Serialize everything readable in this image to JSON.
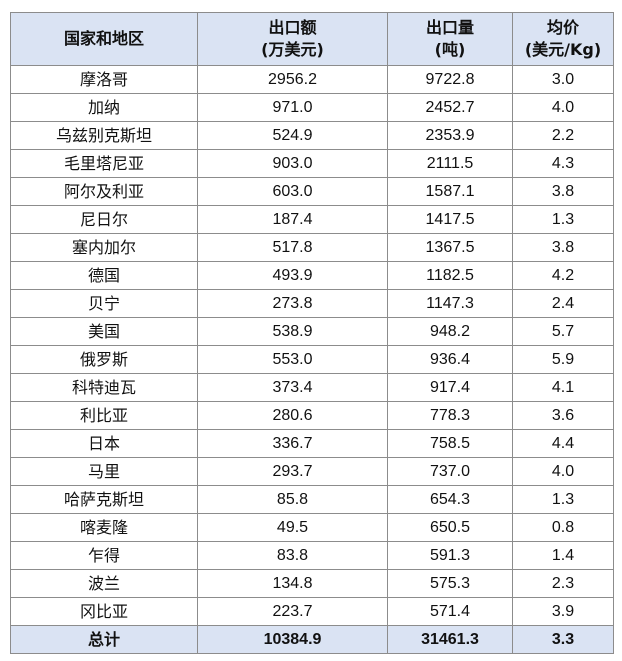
{
  "table": {
    "headers": {
      "country": "国家和地区",
      "export_value": [
        "出口额",
        "(万美元)"
      ],
      "export_volume": [
        "出口量",
        "(吨)"
      ],
      "unit_price": [
        "均价",
        "(美元/Kg)"
      ]
    },
    "rows": [
      {
        "country": "摩洛哥",
        "value": "2956.2",
        "volume": "9722.8",
        "price": "3.0"
      },
      {
        "country": "加纳",
        "value": "971.0",
        "volume": "2452.7",
        "price": "4.0"
      },
      {
        "country": "乌兹别克斯坦",
        "value": "524.9",
        "volume": "2353.9",
        "price": "2.2"
      },
      {
        "country": "毛里塔尼亚",
        "value": "903.0",
        "volume": "2111.5",
        "price": "4.3"
      },
      {
        "country": "阿尔及利亚",
        "value": "603.0",
        "volume": "1587.1",
        "price": "3.8"
      },
      {
        "country": "尼日尔",
        "value": "187.4",
        "volume": "1417.5",
        "price": "1.3"
      },
      {
        "country": "塞内加尔",
        "value": "517.8",
        "volume": "1367.5",
        "price": "3.8"
      },
      {
        "country": "德国",
        "value": "493.9",
        "volume": "1182.5",
        "price": "4.2"
      },
      {
        "country": "贝宁",
        "value": "273.8",
        "volume": "1147.3",
        "price": "2.4"
      },
      {
        "country": "美国",
        "value": "538.9",
        "volume": "948.2",
        "price": "5.7"
      },
      {
        "country": "俄罗斯",
        "value": "553.0",
        "volume": "936.4",
        "price": "5.9"
      },
      {
        "country": "科特迪瓦",
        "value": "373.4",
        "volume": "917.4",
        "price": "4.1"
      },
      {
        "country": "利比亚",
        "value": "280.6",
        "volume": "778.3",
        "price": "3.6"
      },
      {
        "country": "日本",
        "value": "336.7",
        "volume": "758.5",
        "price": "4.4"
      },
      {
        "country": "马里",
        "value": "293.7",
        "volume": "737.0",
        "price": "4.0"
      },
      {
        "country": "哈萨克斯坦",
        "value": "85.8",
        "volume": "654.3",
        "price": "1.3"
      },
      {
        "country": "喀麦隆",
        "value": "49.5",
        "volume": "650.5",
        "price": "0.8"
      },
      {
        "country": "乍得",
        "value": "83.8",
        "volume": "591.3",
        "price": "1.4"
      },
      {
        "country": "波兰",
        "value": "134.8",
        "volume": "575.3",
        "price": "2.3"
      },
      {
        "country": "冈比亚",
        "value": "223.7",
        "volume": "571.4",
        "price": "3.9"
      }
    ],
    "total": {
      "country": "总计",
      "value": "10384.9",
      "volume": "31461.3",
      "price": "3.3"
    },
    "colors": {
      "header_bg": "#dae3f3",
      "border": "#8c8c8c"
    }
  }
}
